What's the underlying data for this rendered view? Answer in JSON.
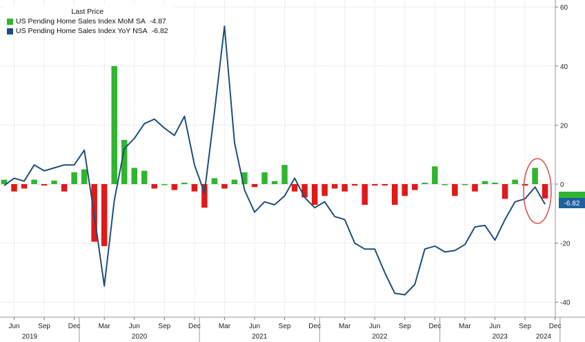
{
  "chart_data": {
    "type": "bar+line",
    "legend": {
      "title": "Last Price",
      "placement": "top-left",
      "items": [
        {
          "name": "US Pending Home Sales Index MoM SA",
          "last": "-4.87",
          "color": "#2fb52f"
        },
        {
          "name": "US Pending Home Sales Index YoY NSA",
          "last": "-6.82",
          "color": "#1f4e79"
        }
      ]
    },
    "y_axis": {
      "side": "right",
      "ylim": [
        -45,
        60
      ],
      "ticks": [
        60,
        40,
        20,
        0,
        -20,
        -40
      ]
    },
    "x_axis": {
      "month_ticks": [
        "Jun",
        "Sep",
        "Dec",
        "Mar",
        "Jun",
        "Sep",
        "Dec",
        "Mar",
        "Jun",
        "Sep",
        "Dec",
        "Mar",
        "Jun",
        "Sep",
        "Dec",
        "Mar",
        "Jun",
        "Sep",
        "Dec"
      ],
      "years": [
        "2019",
        "2020",
        "2021",
        "2022",
        "2023",
        "2024"
      ]
    },
    "last_label": "-6.82",
    "grid": true,
    "x_start": "2019-05",
    "mom_series": {
      "name": "US Pending Home Sales Index MoM SA",
      "values": [
        1.5,
        -2.5,
        -1.5,
        1.5,
        -0.5,
        1.2,
        -2.5,
        4.0,
        5.0,
        -19.5,
        -21.0,
        40.0,
        15.0,
        5.5,
        4.5,
        -1.5,
        0.0,
        -2.0,
        0.5,
        -2.5,
        -8.0,
        2.0,
        -1.5,
        1.5,
        4.0,
        -1.0,
        4.0,
        1.0,
        6.5,
        -2.5,
        -4.5,
        -7.0,
        -4.0,
        -1.5,
        -2.5,
        -0.5,
        -7.0,
        -0.5,
        -0.5,
        -7.0,
        -4.0,
        -2.0,
        0.5,
        6.0,
        0.0,
        -4.0,
        0.0,
        -2.5,
        1.0,
        0.5,
        -5.0,
        1.5,
        -0.5,
        5.5,
        -4.87
      ],
      "color_up": "#2fb52f",
      "color_down": "#e11919"
    },
    "yoy_series": {
      "name": "US Pending Home Sales Index YoY NSA",
      "values": [
        -0.5,
        2.0,
        1.0,
        6.5,
        4.5,
        5.5,
        6.5,
        6.5,
        11.5,
        -10.5,
        -34.5,
        -5.5,
        12.0,
        15.5,
        20.5,
        22.0,
        19.0,
        16.5,
        23.0,
        6.5,
        -3.0,
        24.5,
        53.5,
        14.0,
        -2.0,
        -9.5,
        -6.0,
        -7.0,
        -4.0,
        2.0,
        -4.5,
        -8.0,
        -6.0,
        -11.0,
        -12.0,
        -20.0,
        -22.0,
        -22.0,
        -30.0,
        -37.0,
        -37.5,
        -34.0,
        -22.0,
        -21.0,
        -23.0,
        -22.5,
        -20.5,
        -14.5,
        -14.0,
        -19.0,
        -12.0,
        -6.0,
        -5.0,
        -1.0,
        -6.82
      ],
      "color": "#1f4e79"
    }
  }
}
